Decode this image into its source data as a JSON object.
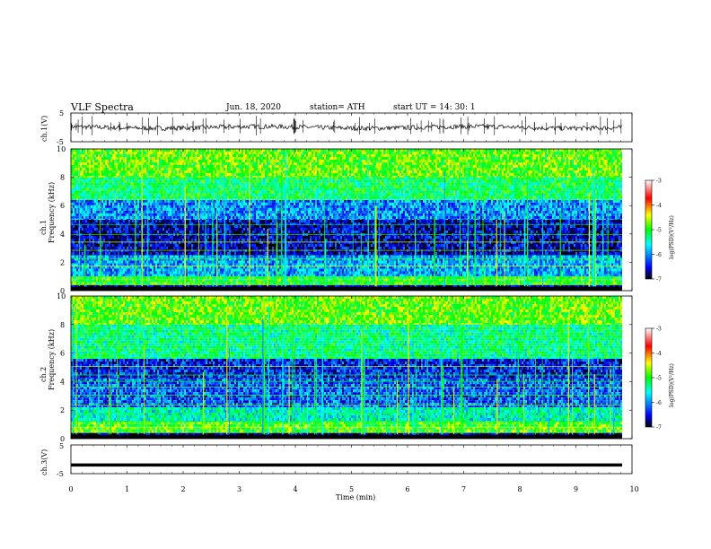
{
  "header": {
    "title": "VLF  Spectra",
    "date": "Jun. 18, 2020",
    "station": "station= ATH",
    "start": "start  UT  =    14: 30: 1"
  },
  "chart_data": [
    {
      "type": "line",
      "panel": "channel-1-waveform",
      "ylabel": "ch.1(V)",
      "ylim": [
        -5,
        5
      ],
      "yticks": [
        "5",
        "-5"
      ],
      "xlim": [
        0,
        10
      ],
      "noise_amplitude_approx": 1.5
    },
    {
      "type": "heatmap",
      "panel": "channel-1-spectrogram",
      "ylabel_line1": "ch.1",
      "ylabel_line2": "Frequency  (kHz)",
      "ylim": [
        0,
        10
      ],
      "yticks": [
        "0",
        "2",
        "4",
        "6",
        "8",
        "10"
      ],
      "xlim": [
        0,
        10
      ],
      "bands_khz": [
        {
          "from": 0,
          "to": 0.4,
          "level": -6.8
        },
        {
          "from": 0.4,
          "to": 1.0,
          "level": -5.0
        },
        {
          "from": 1.0,
          "to": 2.5,
          "level": -5.9
        },
        {
          "from": 2.5,
          "to": 5.0,
          "level": -6.6
        },
        {
          "from": 5.0,
          "to": 6.4,
          "level": -6.0
        },
        {
          "from": 6.4,
          "to": 8.0,
          "level": -5.2
        },
        {
          "from": 8.0,
          "to": 10.0,
          "level": -4.8
        }
      ],
      "colorbar": {
        "label": "log(PSD)(V²/Hz)",
        "range": [
          -7,
          -3
        ],
        "ticks": [
          "-3",
          "-4",
          "-5",
          "-6",
          "-7"
        ]
      }
    },
    {
      "type": "heatmap",
      "panel": "channel-2-spectrogram",
      "ylabel_line1": "ch.2",
      "ylabel_line2": "Frequency  (kHz)",
      "ylim": [
        0,
        10
      ],
      "yticks": [
        "0",
        "2",
        "4",
        "6",
        "8",
        "10"
      ],
      "xlim": [
        0,
        10
      ],
      "bands_khz": [
        {
          "from": 0,
          "to": 0.4,
          "level": -6.8
        },
        {
          "from": 0.4,
          "to": 1.2,
          "level": -4.9
        },
        {
          "from": 1.2,
          "to": 2.2,
          "level": -5.5
        },
        {
          "from": 2.2,
          "to": 4.2,
          "level": -6.2
        },
        {
          "from": 4.2,
          "to": 5.6,
          "level": -6.4
        },
        {
          "from": 5.6,
          "to": 8.0,
          "level": -5.3
        },
        {
          "from": 8.0,
          "to": 10.0,
          "level": -4.8
        }
      ],
      "colorbar": {
        "label": "log(PSD)(V²/Hz)",
        "range": [
          -7,
          -3
        ],
        "ticks": [
          "-3",
          "-4",
          "-5",
          "-6",
          "-7"
        ]
      }
    },
    {
      "type": "line",
      "panel": "channel-3-waveform",
      "ylabel": "ch.3(V)",
      "ylim": [
        -5,
        5
      ],
      "yticks": [
        "5",
        "-5"
      ],
      "xlim": [
        0,
        10
      ],
      "constant_value_approx": -2,
      "xlabel": "Time  (min)",
      "xticks": [
        "0",
        "1",
        "2",
        "3",
        "4",
        "5",
        "6",
        "7",
        "8",
        "9",
        "10"
      ]
    }
  ],
  "colors": {
    "axis": "#000000",
    "colormap": [
      "#000000",
      "#0000ff",
      "#00ffff",
      "#00ff00",
      "#ffff00",
      "#ff0000",
      "#ffffff"
    ]
  }
}
